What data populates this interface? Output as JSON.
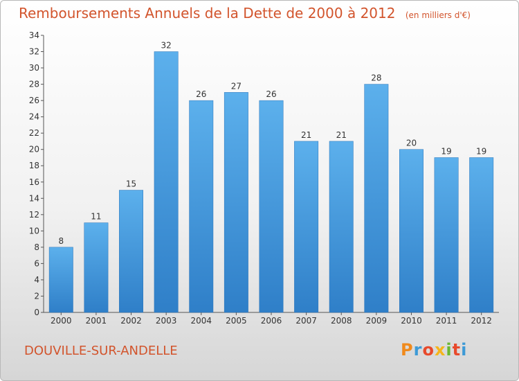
{
  "chart_data": {
    "type": "bar",
    "title": "Remboursements Annuels de la Dette de 2000 à 2012",
    "subtitle": "(en milliers d'€)",
    "categories": [
      "2000",
      "2001",
      "2002",
      "2003",
      "2004",
      "2005",
      "2006",
      "2007",
      "2008",
      "2009",
      "2010",
      "2011",
      "2012"
    ],
    "values": [
      8,
      11,
      15,
      32,
      26,
      27,
      26,
      21,
      21,
      28,
      20,
      19,
      19
    ],
    "ylim": [
      0,
      34
    ],
    "yticks": [
      0,
      2,
      4,
      6,
      8,
      10,
      12,
      14,
      16,
      18,
      20,
      22,
      24,
      26,
      28,
      30,
      32,
      34
    ],
    "grid": false,
    "bar_color": "#4a9de0"
  },
  "place_name": "DOUVILLE-SUR-ANDELLE",
  "brand": "Proxiti"
}
